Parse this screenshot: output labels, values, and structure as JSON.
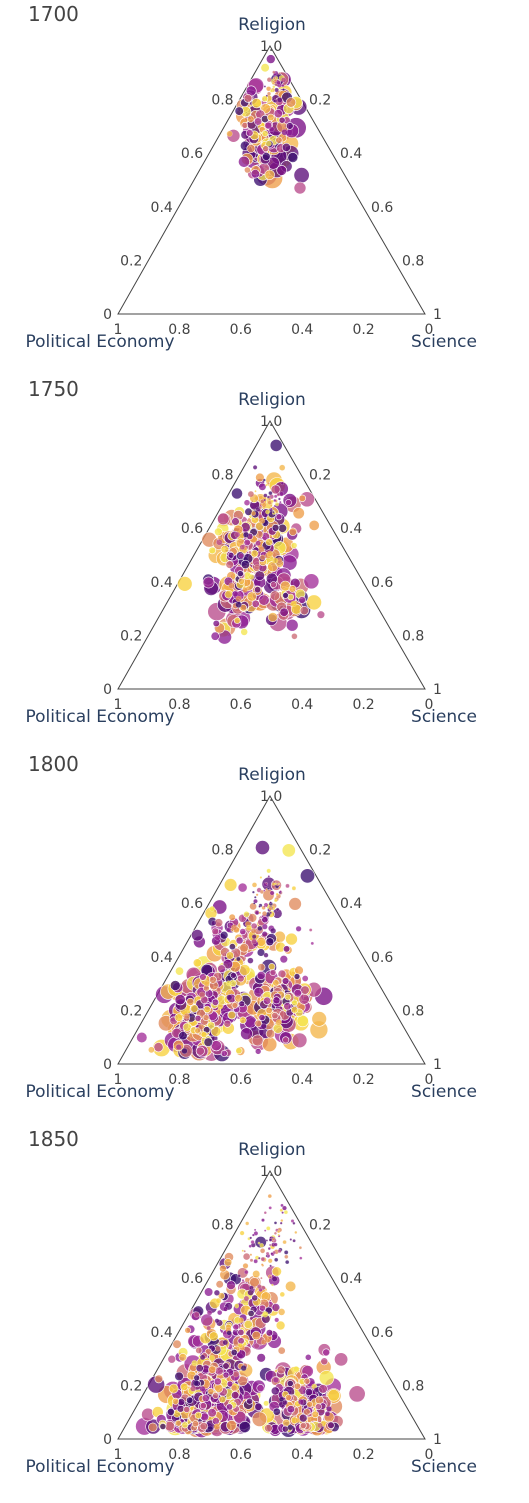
{
  "chart_data": [
    {
      "type": "scatter",
      "subtype": "ternary",
      "title": "1700",
      "axes": {
        "a": "Religion",
        "b": "Political Economy",
        "c": "Science"
      },
      "ticks": {
        "a": [
          "1.0",
          "0.8",
          "0.6",
          "0.4",
          "0.2",
          "0"
        ],
        "b": [
          "1",
          "0.8",
          "0.6",
          "0.4",
          "0.2"
        ],
        "c": [
          "0.2",
          "0.4",
          "0.6",
          "0.8",
          "1",
          "0"
        ]
      },
      "clusters": [
        {
          "religion": 0.72,
          "political_economy": 0.16,
          "science": 0.12,
          "spread": 0.08,
          "count": 130,
          "size": 7
        },
        {
          "religion": 0.6,
          "political_economy": 0.2,
          "science": 0.2,
          "spread": 0.06,
          "count": 60,
          "size": 9
        },
        {
          "religion": 0.85,
          "political_economy": 0.06,
          "science": 0.09,
          "spread": 0.03,
          "count": 25,
          "size": 2
        }
      ],
      "outliers": [
        {
          "religion": 0.47,
          "political_economy": 0.17,
          "science": 0.36,
          "size": 6
        }
      ]
    },
    {
      "type": "scatter",
      "subtype": "ternary",
      "title": "1750",
      "axes": {
        "a": "Religion",
        "b": "Political Economy",
        "c": "Science"
      },
      "ticks": {
        "a": [
          "1.0",
          "0.8",
          "0.6",
          "0.4",
          "0.2",
          "0"
        ],
        "b": [
          "1",
          "0.8",
          "0.6",
          "0.4",
          "0.2"
        ],
        "c": [
          "0.2",
          "0.4",
          "0.6",
          "0.8",
          "1",
          "0"
        ]
      },
      "clusters": [
        {
          "religion": 0.55,
          "political_economy": 0.28,
          "science": 0.17,
          "spread": 0.11,
          "count": 220,
          "size": 7
        },
        {
          "religion": 0.34,
          "political_economy": 0.42,
          "science": 0.24,
          "spread": 0.07,
          "count": 80,
          "size": 8
        },
        {
          "religion": 0.33,
          "political_economy": 0.28,
          "science": 0.39,
          "spread": 0.06,
          "count": 40,
          "size": 8
        },
        {
          "religion": 0.7,
          "political_economy": 0.16,
          "science": 0.14,
          "spread": 0.04,
          "count": 40,
          "size": 2
        }
      ],
      "outliers": []
    },
    {
      "type": "scatter",
      "subtype": "ternary",
      "title": "1800",
      "axes": {
        "a": "Religion",
        "b": "Political Economy",
        "c": "Science"
      },
      "ticks": {
        "a": [
          "1.0",
          "0.8",
          "0.6",
          "0.4",
          "0.2",
          "0"
        ],
        "b": [
          "1",
          "0.8",
          "0.6",
          "0.4",
          "0.2"
        ],
        "c": [
          "0.2",
          "0.4",
          "0.6",
          "0.8",
          "1",
          "0"
        ]
      },
      "clusters": [
        {
          "religion": 0.2,
          "political_economy": 0.62,
          "science": 0.18,
          "spread": 0.1,
          "count": 260,
          "size": 8
        },
        {
          "religion": 0.22,
          "political_economy": 0.36,
          "science": 0.42,
          "spread": 0.08,
          "count": 180,
          "size": 8
        },
        {
          "religion": 0.48,
          "political_economy": 0.33,
          "science": 0.19,
          "spread": 0.12,
          "count": 120,
          "size": 6
        },
        {
          "religion": 0.62,
          "political_economy": 0.2,
          "science": 0.18,
          "spread": 0.05,
          "count": 50,
          "size": 2
        }
      ],
      "outliers": [
        {
          "religion": 0.5,
          "political_economy": 0.12,
          "science": 0.38,
          "size": 1.5
        },
        {
          "religion": 0.45,
          "political_economy": 0.14,
          "science": 0.41,
          "size": 1.5
        }
      ]
    },
    {
      "type": "scatter",
      "subtype": "ternary",
      "title": "1850",
      "axes": {
        "a": "Religion",
        "b": "Political Economy",
        "c": "Science"
      },
      "ticks": {
        "a": [
          "1.0",
          "0.8",
          "0.6",
          "0.4",
          "0.2",
          "0"
        ],
        "b": [
          "1",
          "0.8",
          "0.6",
          "0.4",
          "0.2"
        ],
        "c": [
          "0.2",
          "0.4",
          "0.6",
          "0.8",
          "1",
          "0"
        ]
      },
      "clusters": [
        {
          "religion": 0.16,
          "political_economy": 0.62,
          "science": 0.22,
          "spread": 0.11,
          "count": 360,
          "size": 8
        },
        {
          "religion": 0.12,
          "political_economy": 0.34,
          "science": 0.54,
          "spread": 0.09,
          "count": 200,
          "size": 7
        },
        {
          "religion": 0.45,
          "political_economy": 0.37,
          "science": 0.18,
          "spread": 0.12,
          "count": 160,
          "size": 6
        },
        {
          "religion": 0.72,
          "political_economy": 0.16,
          "science": 0.12,
          "spread": 0.08,
          "count": 90,
          "size": 2
        }
      ],
      "outliers": []
    }
  ]
}
